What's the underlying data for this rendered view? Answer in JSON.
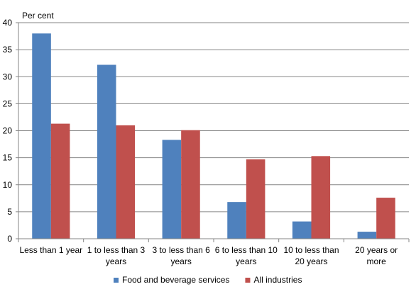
{
  "chart_data": {
    "type": "bar",
    "ylabel": "Per cent",
    "ylim": [
      0,
      40
    ],
    "yticks": [
      0,
      5,
      10,
      15,
      20,
      25,
      30,
      35,
      40
    ],
    "grid": true,
    "legend_position": "bottom",
    "categories": [
      [
        "Less than 1 year"
      ],
      [
        "1 to less than 3",
        "years"
      ],
      [
        "3 to less than 6",
        "years"
      ],
      [
        "6 to less than 10",
        "years"
      ],
      [
        "10 to less than",
        "20 years"
      ],
      [
        "20 years or",
        "more"
      ]
    ],
    "series": [
      {
        "name": "Food and beverage services",
        "color": "#4F81BD",
        "values": [
          38.0,
          32.2,
          18.3,
          6.8,
          3.2,
          1.3
        ]
      },
      {
        "name": "All industries",
        "color": "#C0504D",
        "values": [
          21.3,
          21.0,
          20.1,
          14.7,
          15.3,
          7.6
        ]
      }
    ]
  }
}
